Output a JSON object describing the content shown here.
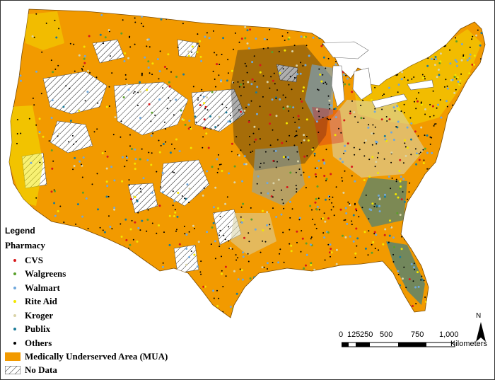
{
  "legend": {
    "title": "Legend",
    "subtitle": "Pharmacy",
    "items": [
      {
        "label": "CVS",
        "color": "#d7191c"
      },
      {
        "label": "Walgreens",
        "color": "#5aa02c"
      },
      {
        "label": "Walmart",
        "color": "#6fa8dc"
      },
      {
        "label": "Rite Aid",
        "color": "#f2e600"
      },
      {
        "label": "Kroger",
        "color": "#d9d3a8"
      },
      {
        "label": "Publix",
        "color": "#1c7c99"
      },
      {
        "label": "Others",
        "color": "#000000"
      }
    ],
    "mua_label": "Medically Underserved Area (MUA)",
    "mua_color": "#f29a00",
    "nodata_label": "No Data"
  },
  "scale": {
    "ticks": [
      "0",
      "125",
      "250",
      "500",
      "750",
      "1,000"
    ],
    "unit": "Kilometers"
  },
  "north_label": "N"
}
